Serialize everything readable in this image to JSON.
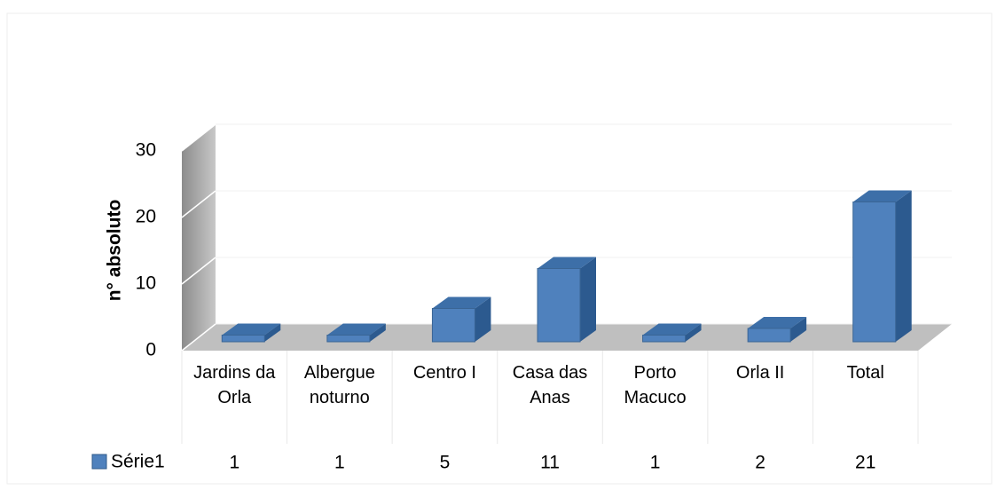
{
  "chart_data": {
    "type": "bar3d",
    "y_axis_label": "n° absoluto",
    "categories": [
      "Jardins da Orla",
      "Albergue noturno",
      "Centro I",
      "Casa das Anas",
      "Porto Macuco",
      "Orla II",
      "Total"
    ],
    "series": [
      {
        "name": "Série1",
        "color": "#4f81bd",
        "values": [
          1,
          1,
          5,
          11,
          1,
          2,
          21
        ]
      }
    ],
    "ylim": [
      0,
      30
    ],
    "yticks": [
      0,
      10,
      20,
      30
    ],
    "grid": true,
    "data_table": true
  }
}
